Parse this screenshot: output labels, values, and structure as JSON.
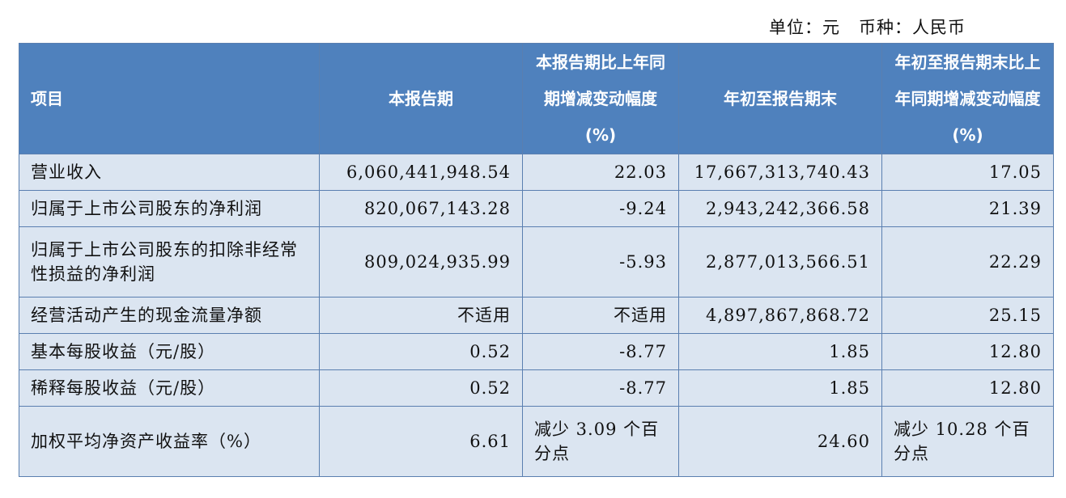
{
  "unit_line": "单位：元   币种：人民币",
  "headers": [
    "项目",
    "本报告期",
    "本报告期比上年同期增减变动幅度(%)",
    "年初至报告期末",
    "年初至报告期末比上年同期增减变动幅度(%)"
  ],
  "rows": [
    [
      "营业收入",
      "6,060,441,948.54",
      "22.03",
      "17,667,313,740.43",
      "17.05"
    ],
    [
      "归属于上市公司股东的净利润",
      "820,067,143.28",
      "-9.24",
      "2,943,242,366.58",
      "21.39"
    ],
    [
      "归属于上市公司股东的扣除非经常性损益的净利润",
      "809,024,935.99",
      "-5.93",
      "2,877,013,566.51",
      "22.29"
    ],
    [
      "经营活动产生的现金流量净额",
      "不适用",
      "不适用",
      "4,897,867,868.72",
      "25.15"
    ],
    [
      "基本每股收益（元/股）",
      "0.52",
      "-8.77",
      "1.85",
      "12.80"
    ],
    [
      "稀释每股收益（元/股）",
      "0.52",
      "-8.77",
      "1.85",
      "12.80"
    ],
    [
      "加权平均净资产收益率（%）",
      "6.61",
      "减少 3.09 个百分点",
      "24.60",
      "减少 10.28 个百分点"
    ]
  ],
  "colors": {
    "header_bg": "#4f81bd",
    "header_text": "#ffffff",
    "row_bg": "#dbe5f1",
    "border": "#5a7fb0"
  }
}
